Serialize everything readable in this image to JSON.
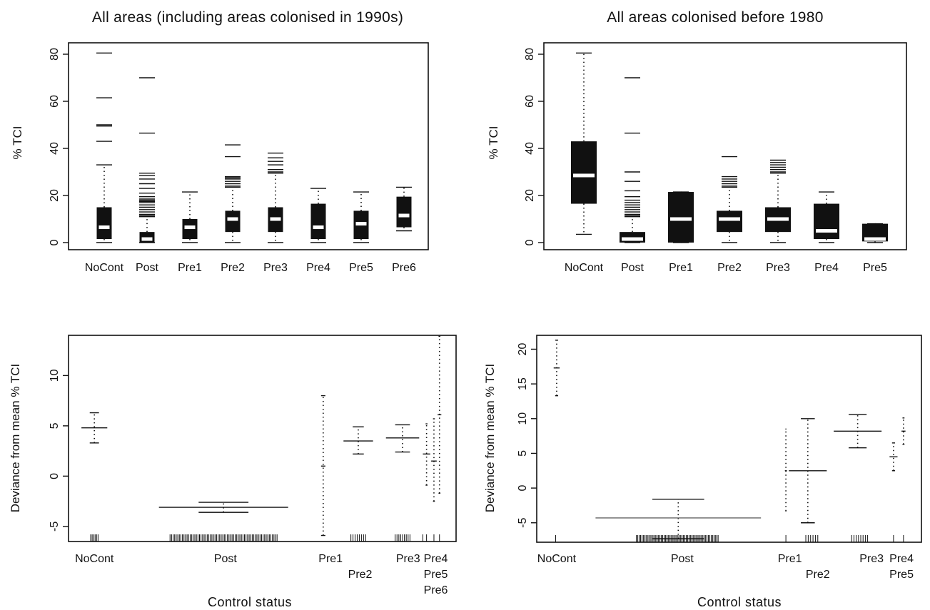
{
  "panels": {
    "tl": {
      "title": "All areas (including areas colonised in 1990s)",
      "ylabel": "% TCI"
    },
    "tr": {
      "title": "All areas colonised before 1980",
      "ylabel": "% TCI"
    },
    "bl": {
      "ylabel": "Deviance from mean % TCI",
      "xlabel": "Control status"
    },
    "br": {
      "ylabel": "Deviance from mean % TCI",
      "xlabel": "Control status"
    }
  },
  "chart_data": [
    {
      "id": "tl",
      "type": "box",
      "title": "All areas (including areas colonised in 1990s)",
      "ylabel": "% TCI",
      "xlabel": "",
      "ylim": [
        0,
        80
      ],
      "yticks": [
        0,
        20,
        40,
        60,
        80
      ],
      "categories": [
        "NoCont",
        "Post",
        "Pre1",
        "Pre2",
        "Pre3",
        "Pre4",
        "Pre5",
        "Pre6"
      ],
      "boxes": [
        {
          "min": 0,
          "q1": 1.5,
          "median": 6.5,
          "q3": 15,
          "max": 33,
          "outliers": [
            43,
            49.5,
            50,
            61.5,
            80.5
          ]
        },
        {
          "min": 0,
          "q1": 0,
          "median": 1.5,
          "q3": 4.5,
          "max": 11,
          "outliers": [
            11.5,
            12,
            13,
            14,
            15,
            16,
            17,
            17.5,
            18,
            18.5,
            19.5,
            21,
            23,
            25,
            27,
            28.5,
            29.5,
            46.5,
            70
          ]
        },
        {
          "min": 0,
          "q1": 1.5,
          "median": 6.5,
          "q3": 10,
          "max": 21.5,
          "outliers": []
        },
        {
          "min": 0,
          "q1": 4.5,
          "median": 10,
          "q3": 13.5,
          "max": 23.5,
          "outliers": [
            24,
            25,
            26,
            27,
            27.5,
            28,
            36.5,
            41.5
          ]
        },
        {
          "min": 0,
          "q1": 4.5,
          "median": 10,
          "q3": 15,
          "max": 29.5,
          "outliers": [
            30,
            31,
            33,
            34.5,
            36,
            38
          ]
        },
        {
          "min": 0,
          "q1": 1.5,
          "median": 6.5,
          "q3": 16.5,
          "max": 23,
          "outliers": []
        },
        {
          "min": 0,
          "q1": 1.5,
          "median": 8,
          "q3": 13.5,
          "max": 21.5,
          "outliers": []
        },
        {
          "min": 5,
          "q1": 6.5,
          "median": 11.5,
          "q3": 19.5,
          "max": 23.5,
          "outliers": []
        }
      ]
    },
    {
      "id": "tr",
      "type": "box",
      "title": "All areas colonised before 1980",
      "ylabel": "% TCI",
      "xlabel": "",
      "ylim": [
        0,
        80
      ],
      "yticks": [
        0,
        20,
        40,
        60,
        80
      ],
      "categories": [
        "NoCont",
        "Post",
        "Pre1",
        "Pre2",
        "Pre3",
        "Pre4",
        "Pre5"
      ],
      "boxes": [
        {
          "min": 3.5,
          "q1": 16.5,
          "median": 28.5,
          "q3": 43,
          "max": 80.5,
          "outliers": []
        },
        {
          "min": 0,
          "q1": 0,
          "median": 1.5,
          "q3": 4.5,
          "max": 11,
          "outliers": [
            11.5,
            12,
            13,
            14,
            15,
            16,
            17,
            18,
            19.5,
            22,
            26,
            30,
            46.5,
            70
          ]
        },
        {
          "min": 0,
          "q1": 0,
          "median": 10,
          "q3": 21.5,
          "max": 21.5,
          "outliers": []
        },
        {
          "min": 0,
          "q1": 4.5,
          "median": 10,
          "q3": 13.5,
          "max": 23.5,
          "outliers": [
            24,
            25,
            26,
            27,
            28,
            36.5
          ]
        },
        {
          "min": 0,
          "q1": 4.5,
          "median": 10,
          "q3": 15,
          "max": 29.5,
          "outliers": [
            30,
            31,
            32,
            33,
            34,
            35
          ]
        },
        {
          "min": 0,
          "q1": 1.5,
          "median": 5,
          "q3": 16.5,
          "max": 21.5,
          "outliers": []
        },
        {
          "min": 0,
          "q1": 0.5,
          "median": 1.5,
          "q3": 8,
          "max": 8,
          "outliers": []
        }
      ]
    },
    {
      "id": "bl",
      "type": "interval",
      "title": "",
      "ylabel": "Deviance from mean % TCI",
      "xlabel": "Control status",
      "ylim": [
        -6.5,
        14
      ],
      "yticks": [
        -5,
        0,
        5,
        10
      ],
      "xaxis_labels": [
        {
          "text": "NoCont",
          "x": 0.9,
          "row": 0
        },
        {
          "text": "Post",
          "x": 8.0,
          "row": 0
        },
        {
          "text": "Pre1",
          "x": 13.7,
          "row": 0
        },
        {
          "text": "Pre2",
          "x": 15.3,
          "row": 1
        },
        {
          "text": "Pre3",
          "x": 17.9,
          "row": 0
        },
        {
          "text": "Pre4",
          "x": 19.4,
          "row": 0
        },
        {
          "text": "Pre5",
          "x": 19.4,
          "row": 1
        },
        {
          "text": "Pre6",
          "x": 19.4,
          "row": 2
        }
      ],
      "xlim": [
        -0.5,
        20.5
      ],
      "intervals": [
        {
          "group": "NoCont",
          "x": 0.9,
          "lo": 3.3,
          "mid": 4.8,
          "hi": 6.3,
          "wmid": 1.4,
          "wend": 0.5
        },
        {
          "group": "Post",
          "x": 7.9,
          "lo": -3.6,
          "mid": -3.1,
          "hi": -2.6,
          "wmid": 7.0,
          "wend": 2.7
        },
        {
          "group": "Pre1",
          "x": 13.3,
          "lo": -5.9,
          "mid": 1.0,
          "hi": 8.0,
          "wmid": 0,
          "wend": 0
        },
        {
          "group": "Pre2",
          "x": 15.2,
          "lo": 2.2,
          "mid": 3.5,
          "hi": 4.9,
          "wmid": 1.6,
          "wend": 0.6
        },
        {
          "group": "Pre3",
          "x": 17.6,
          "lo": 2.4,
          "mid": 3.8,
          "hi": 5.1,
          "wmid": 1.8,
          "wend": 0.8
        },
        {
          "group": "Pre4",
          "x": 18.9,
          "lo": -0.9,
          "mid": 2.2,
          "hi": 5.2,
          "wmid": 0.4,
          "wend": 0.1
        },
        {
          "group": "Pre5",
          "x": 19.3,
          "lo": -2.5,
          "mid": 1.5,
          "hi": 5.7,
          "wmid": 0.3,
          "wend": 0.1
        },
        {
          "group": "Pre6",
          "x": 19.6,
          "lo": -1.7,
          "mid": 6.1,
          "hi": 13.9,
          "wmid": 0.2,
          "wend": 0.1
        }
      ],
      "rug": [
        {
          "from": 0.7,
          "to": 1.1,
          "count": 6
        },
        {
          "from": 5.0,
          "to": 10.8,
          "count": 70
        },
        {
          "from": 14.8,
          "to": 15.6,
          "count": 8
        },
        {
          "from": 17.2,
          "to": 18.0,
          "count": 9
        },
        {
          "from": 18.7,
          "to": 18.9,
          "count": 2
        },
        {
          "from": 19.3,
          "to": 19.4,
          "count": 1
        },
        {
          "from": 19.6,
          "to": 19.7,
          "count": 1
        }
      ]
    },
    {
      "id": "br",
      "type": "interval",
      "title": "",
      "ylabel": "Deviance from mean % TCI",
      "xlabel": "Control status",
      "ylim": [
        -7.8,
        22
      ],
      "yticks": [
        -5,
        0,
        5,
        10,
        15,
        20
      ],
      "xaxis_labels": [
        {
          "text": "NoCont",
          "x": 0.5,
          "row": 0
        },
        {
          "text": "Post",
          "x": 6.8,
          "row": 0
        },
        {
          "text": "Pre1",
          "x": 12.2,
          "row": 0
        },
        {
          "text": "Pre2",
          "x": 13.6,
          "row": 1
        },
        {
          "text": "Pre3",
          "x": 16.3,
          "row": 0
        },
        {
          "text": "Pre4",
          "x": 17.8,
          "row": 0
        },
        {
          "text": "Pre5",
          "x": 17.8,
          "row": 1
        }
      ],
      "xlim": [
        -0.5,
        18.8
      ],
      "intervals": [
        {
          "group": "NoCont",
          "x": 0.5,
          "lo": 13.3,
          "mid": 17.3,
          "hi": 21.3,
          "wmid": 0.3,
          "wend": 0.15
        },
        {
          "group": "Post",
          "x": 6.6,
          "lo": -7.3,
          "mid": -4.3,
          "hi": -1.6,
          "wmid": 8.3,
          "wend": 2.6
        },
        {
          "group": "Pre1",
          "x": 12.0,
          "lo": -3.3,
          "mid": 2.5,
          "hi": 8.5,
          "wmid": 0.1,
          "wend": 0.05
        },
        {
          "group": "Pre2",
          "x": 13.1,
          "lo": -5.0,
          "mid": 2.5,
          "hi": 10.0,
          "wmid": 1.9,
          "wend": 0.7
        },
        {
          "group": "Pre3",
          "x": 15.6,
          "lo": 5.8,
          "mid": 8.2,
          "hi": 10.6,
          "wmid": 2.4,
          "wend": 0.9
        },
        {
          "group": "Pre4",
          "x": 17.4,
          "lo": 2.5,
          "mid": 4.5,
          "hi": 6.5,
          "wmid": 0.4,
          "wend": 0.15
        },
        {
          "group": "Pre5",
          "x": 17.9,
          "lo": 6.3,
          "mid": 8.2,
          "hi": 10.1,
          "wmid": 0.2,
          "wend": 0.1
        }
      ],
      "rug": [
        {
          "from": 0.45,
          "to": 0.5,
          "count": 1
        },
        {
          "from": 4.5,
          "to": 8.6,
          "count": 60
        },
        {
          "from": 12.0,
          "to": 12.05,
          "count": 1
        },
        {
          "from": 13.0,
          "to": 13.6,
          "count": 6
        },
        {
          "from": 15.3,
          "to": 16.1,
          "count": 8
        },
        {
          "from": 17.4,
          "to": 17.45,
          "count": 1
        },
        {
          "from": 17.9,
          "to": 17.95,
          "count": 1
        }
      ]
    }
  ]
}
